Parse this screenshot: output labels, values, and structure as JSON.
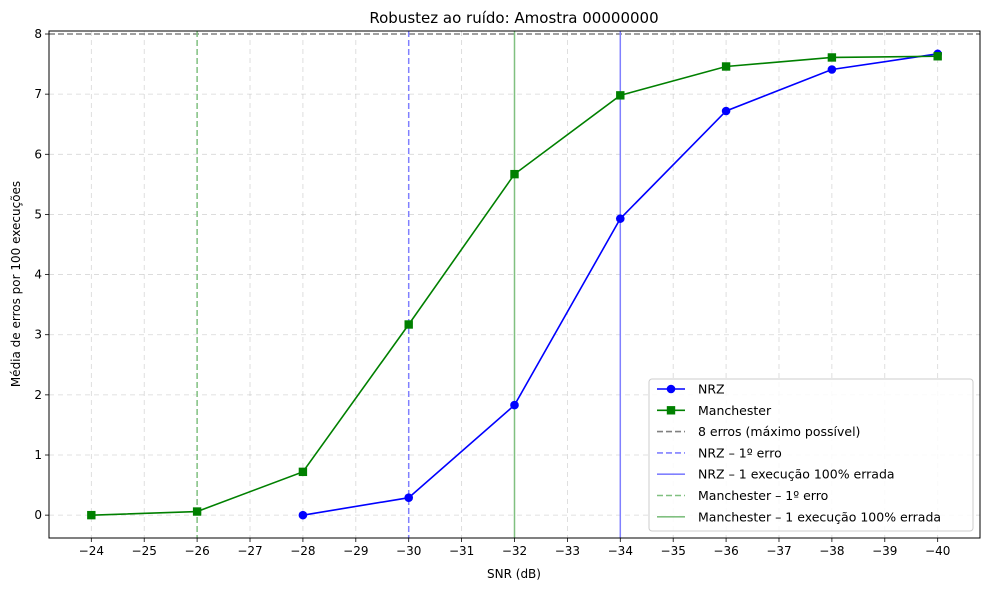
{
  "chart_data": {
    "type": "line",
    "title": "Robustez ao ruído: Amostra 00000000",
    "xlabel": "SNR (dB)",
    "ylabel": "Média de erros por 100 execuções",
    "xlim": [
      -23.2,
      -40.8
    ],
    "ylim": [
      -0.38,
      8.05
    ],
    "x_direction": "reversed",
    "xticks": [
      -24,
      -25,
      -26,
      -27,
      -28,
      -29,
      -30,
      -31,
      -32,
      -33,
      -34,
      -35,
      -36,
      -37,
      -38,
      -39,
      -40
    ],
    "xtick_labels": [
      "−24",
      "−25",
      "−26",
      "−27",
      "−28",
      "−29",
      "−30",
      "−31",
      "−32",
      "−33",
      "−34",
      "−35",
      "−36",
      "−37",
      "−38",
      "−39",
      "−40"
    ],
    "yticks": [
      0,
      1,
      2,
      3,
      4,
      5,
      6,
      7,
      8
    ],
    "ytick_labels": [
      "0",
      "1",
      "2",
      "3",
      "4",
      "5",
      "6",
      "7",
      "8"
    ],
    "grid": true,
    "legend_position": "lower-right",
    "series": [
      {
        "name": "NRZ",
        "color": "#0000ff",
        "marker": "circle",
        "x": [
          -28,
          -30,
          -32,
          -34,
          -36,
          -38,
          -40
        ],
        "values": [
          0.0,
          0.29,
          1.83,
          4.93,
          6.72,
          7.41,
          7.67
        ]
      },
      {
        "name": "Manchester",
        "color": "#008000",
        "marker": "square",
        "x": [
          -24,
          -26,
          -28,
          -30,
          -32,
          -34,
          -36,
          -38,
          -40
        ],
        "values": [
          0.0,
          0.06,
          0.72,
          3.17,
          5.67,
          6.98,
          7.46,
          7.61,
          7.63
        ]
      }
    ],
    "reference_lines": [
      {
        "name": "8 erros (máximo possível)",
        "orientation": "horizontal",
        "value": 8,
        "color": "#808080",
        "style": "dashed"
      },
      {
        "name": "NRZ – 1º erro",
        "orientation": "vertical",
        "value": -30,
        "color": "#8080ff",
        "style": "dashed"
      },
      {
        "name": "NRZ – 1 execução 100% errada",
        "orientation": "vertical",
        "value": -34,
        "color": "#8080ff",
        "style": "solid"
      },
      {
        "name": "Manchester – 1º erro",
        "orientation": "vertical",
        "value": -26,
        "color": "#80c080",
        "style": "dashed"
      },
      {
        "name": "Manchester – 1 execução 100% errada",
        "orientation": "vertical",
        "value": -32,
        "color": "#80c080",
        "style": "solid"
      }
    ],
    "legend": [
      "NRZ",
      "Manchester",
      "8 erros (máximo possível)",
      "NRZ – 1º erro",
      "NRZ – 1 execução 100% errada",
      "Manchester – 1º erro",
      "Manchester – 1 execução 100% errada"
    ]
  }
}
